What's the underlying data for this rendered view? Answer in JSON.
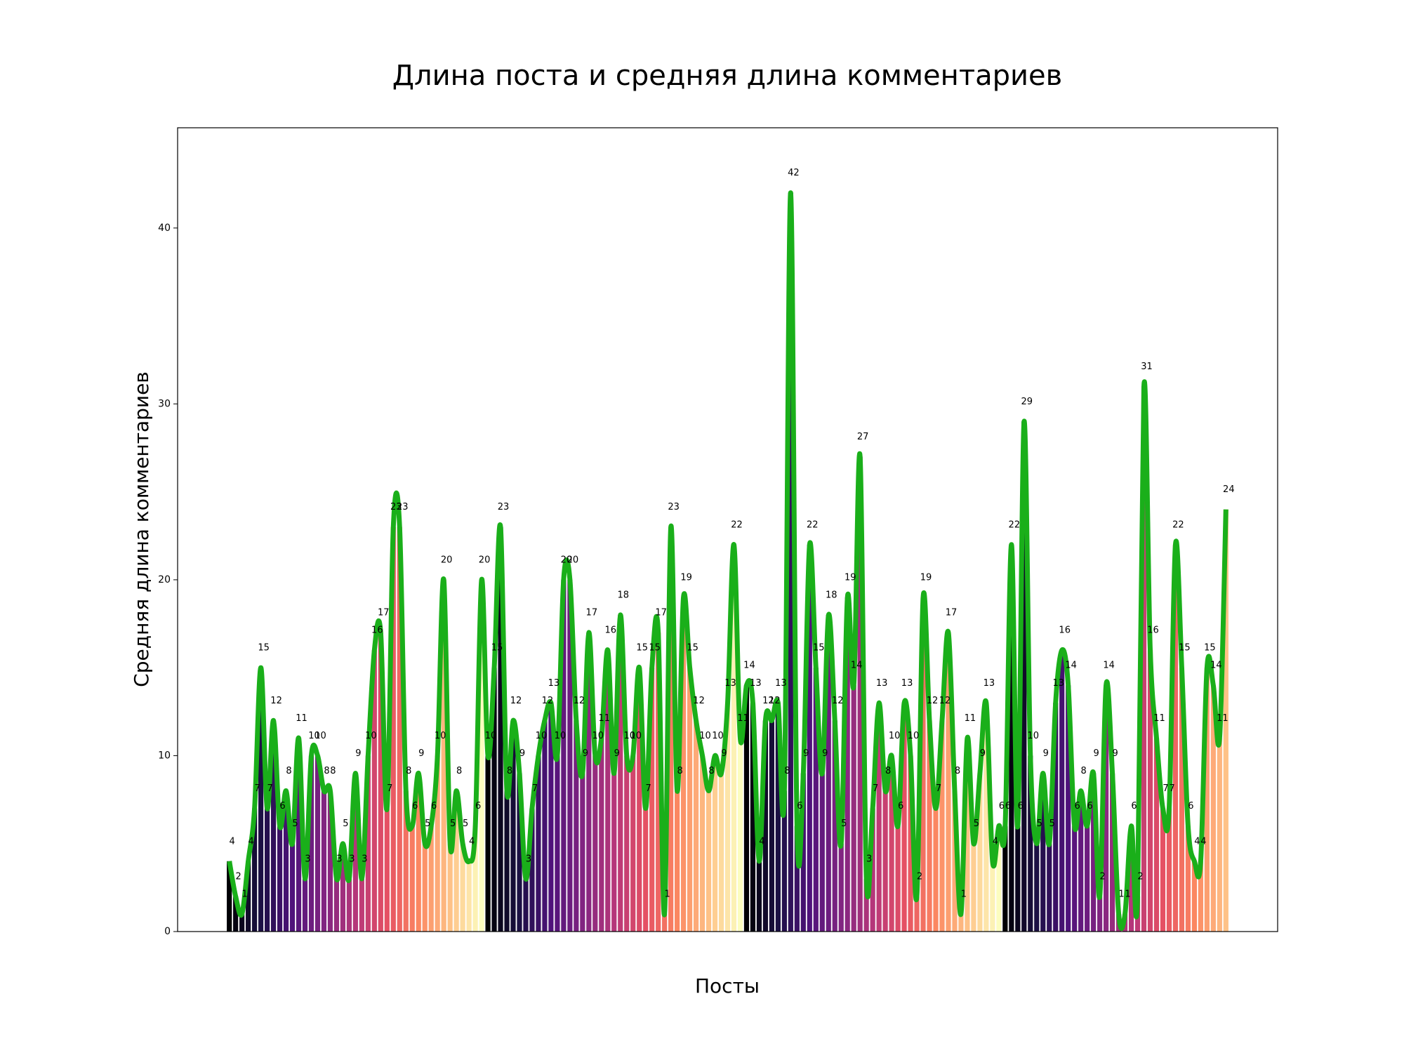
{
  "chart_data": {
    "type": "bar_line",
    "title": "Длина поста и средняя длина комментариев",
    "xlabel": "Посты",
    "ylabel": "Средняя длина комментариев",
    "values": [
      4,
      2,
      1,
      4,
      7,
      15,
      7,
      12,
      6,
      8,
      5,
      11,
      3,
      10,
      10,
      8,
      8,
      3,
      5,
      3,
      9,
      3,
      10,
      16,
      17,
      7,
      23,
      23,
      8,
      6,
      9,
      5,
      6,
      10,
      20,
      5,
      8,
      5,
      4,
      6,
      20,
      10,
      15,
      23,
      8,
      12,
      9,
      3,
      7,
      10,
      12,
      13,
      10,
      20,
      20,
      12,
      9,
      17,
      10,
      11,
      16,
      9,
      18,
      10,
      10,
      15,
      7,
      15,
      17,
      1,
      23,
      8,
      19,
      15,
      12,
      10,
      8,
      10,
      9,
      13,
      22,
      11,
      14,
      13,
      4,
      12,
      12,
      13,
      8,
      42,
      6,
      9,
      22,
      15,
      9,
      18,
      12,
      5,
      19,
      14,
      27,
      3,
      7,
      13,
      8,
      10,
      6,
      13,
      10,
      2,
      19,
      12,
      7,
      12,
      17,
      8,
      1,
      11,
      5,
      9,
      13,
      4,
      6,
      6,
      22,
      6,
      29,
      10,
      5,
      9,
      5,
      13,
      16,
      14,
      6,
      8,
      6,
      9,
      2,
      14,
      9,
      1,
      1,
      6,
      2,
      31,
      16,
      11,
      7,
      7,
      22,
      15,
      6,
      4,
      4,
      15,
      14,
      11,
      24
    ],
    "colormap": [
      "#000004",
      "#1c1044",
      "#4f127b",
      "#812581",
      "#b5367a",
      "#e55064",
      "#fb8761",
      "#fec287",
      "#fcfdbf"
    ],
    "color_cycle": 41,
    "line_color": "#1aaf1a",
    "ylim": [
      0,
      45.7
    ],
    "yticks": [
      0,
      10,
      20,
      30,
      40
    ]
  }
}
